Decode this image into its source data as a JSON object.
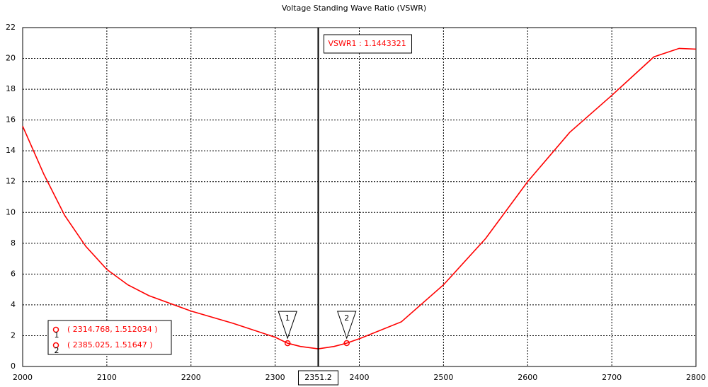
{
  "chart_data": {
    "type": "line",
    "title": "Voltage Standing Wave Ratio (VSWR)",
    "series": [
      {
        "color": "#ff0000",
        "x": [
          2000,
          2025,
          2050,
          2075,
          2100,
          2125,
          2150,
          2200,
          2250,
          2300,
          2314.768,
          2330,
          2351.2,
          2370,
          2385.025,
          2400,
          2450,
          2500,
          2550,
          2600,
          2650,
          2700,
          2750,
          2780,
          2800
        ],
        "values": [
          15.6,
          12.5,
          9.8,
          7.8,
          6.3,
          5.3,
          4.6,
          3.6,
          2.8,
          1.9,
          1.512034,
          1.3,
          1.1443321,
          1.3,
          1.51647,
          1.8,
          2.9,
          5.3,
          8.3,
          12.0,
          15.2,
          17.6,
          20.1,
          20.65,
          20.6
        ]
      }
    ],
    "xlim": [
      2000,
      2800
    ],
    "xticks": [
      2000,
      2100,
      2200,
      2300,
      2400,
      2500,
      2600,
      2700,
      2800
    ],
    "ylim": [
      0,
      22
    ],
    "yticks": [
      0,
      2,
      4,
      6,
      8,
      10,
      12,
      14,
      16,
      18,
      20,
      22
    ],
    "grid": true,
    "markers": [
      {
        "name": "1",
        "x": 2314.768,
        "y": 1.512034,
        "label": "( 2314.768, 1.512034 )"
      },
      {
        "name": "2",
        "x": 2385.025,
        "y": 1.51647,
        "label": "( 2385.025, 1.51647 )"
      }
    ],
    "cursor": {
      "x": 2351.2,
      "value": 1.1443321,
      "value_label": "VSWR1 : 1.1443321"
    }
  }
}
